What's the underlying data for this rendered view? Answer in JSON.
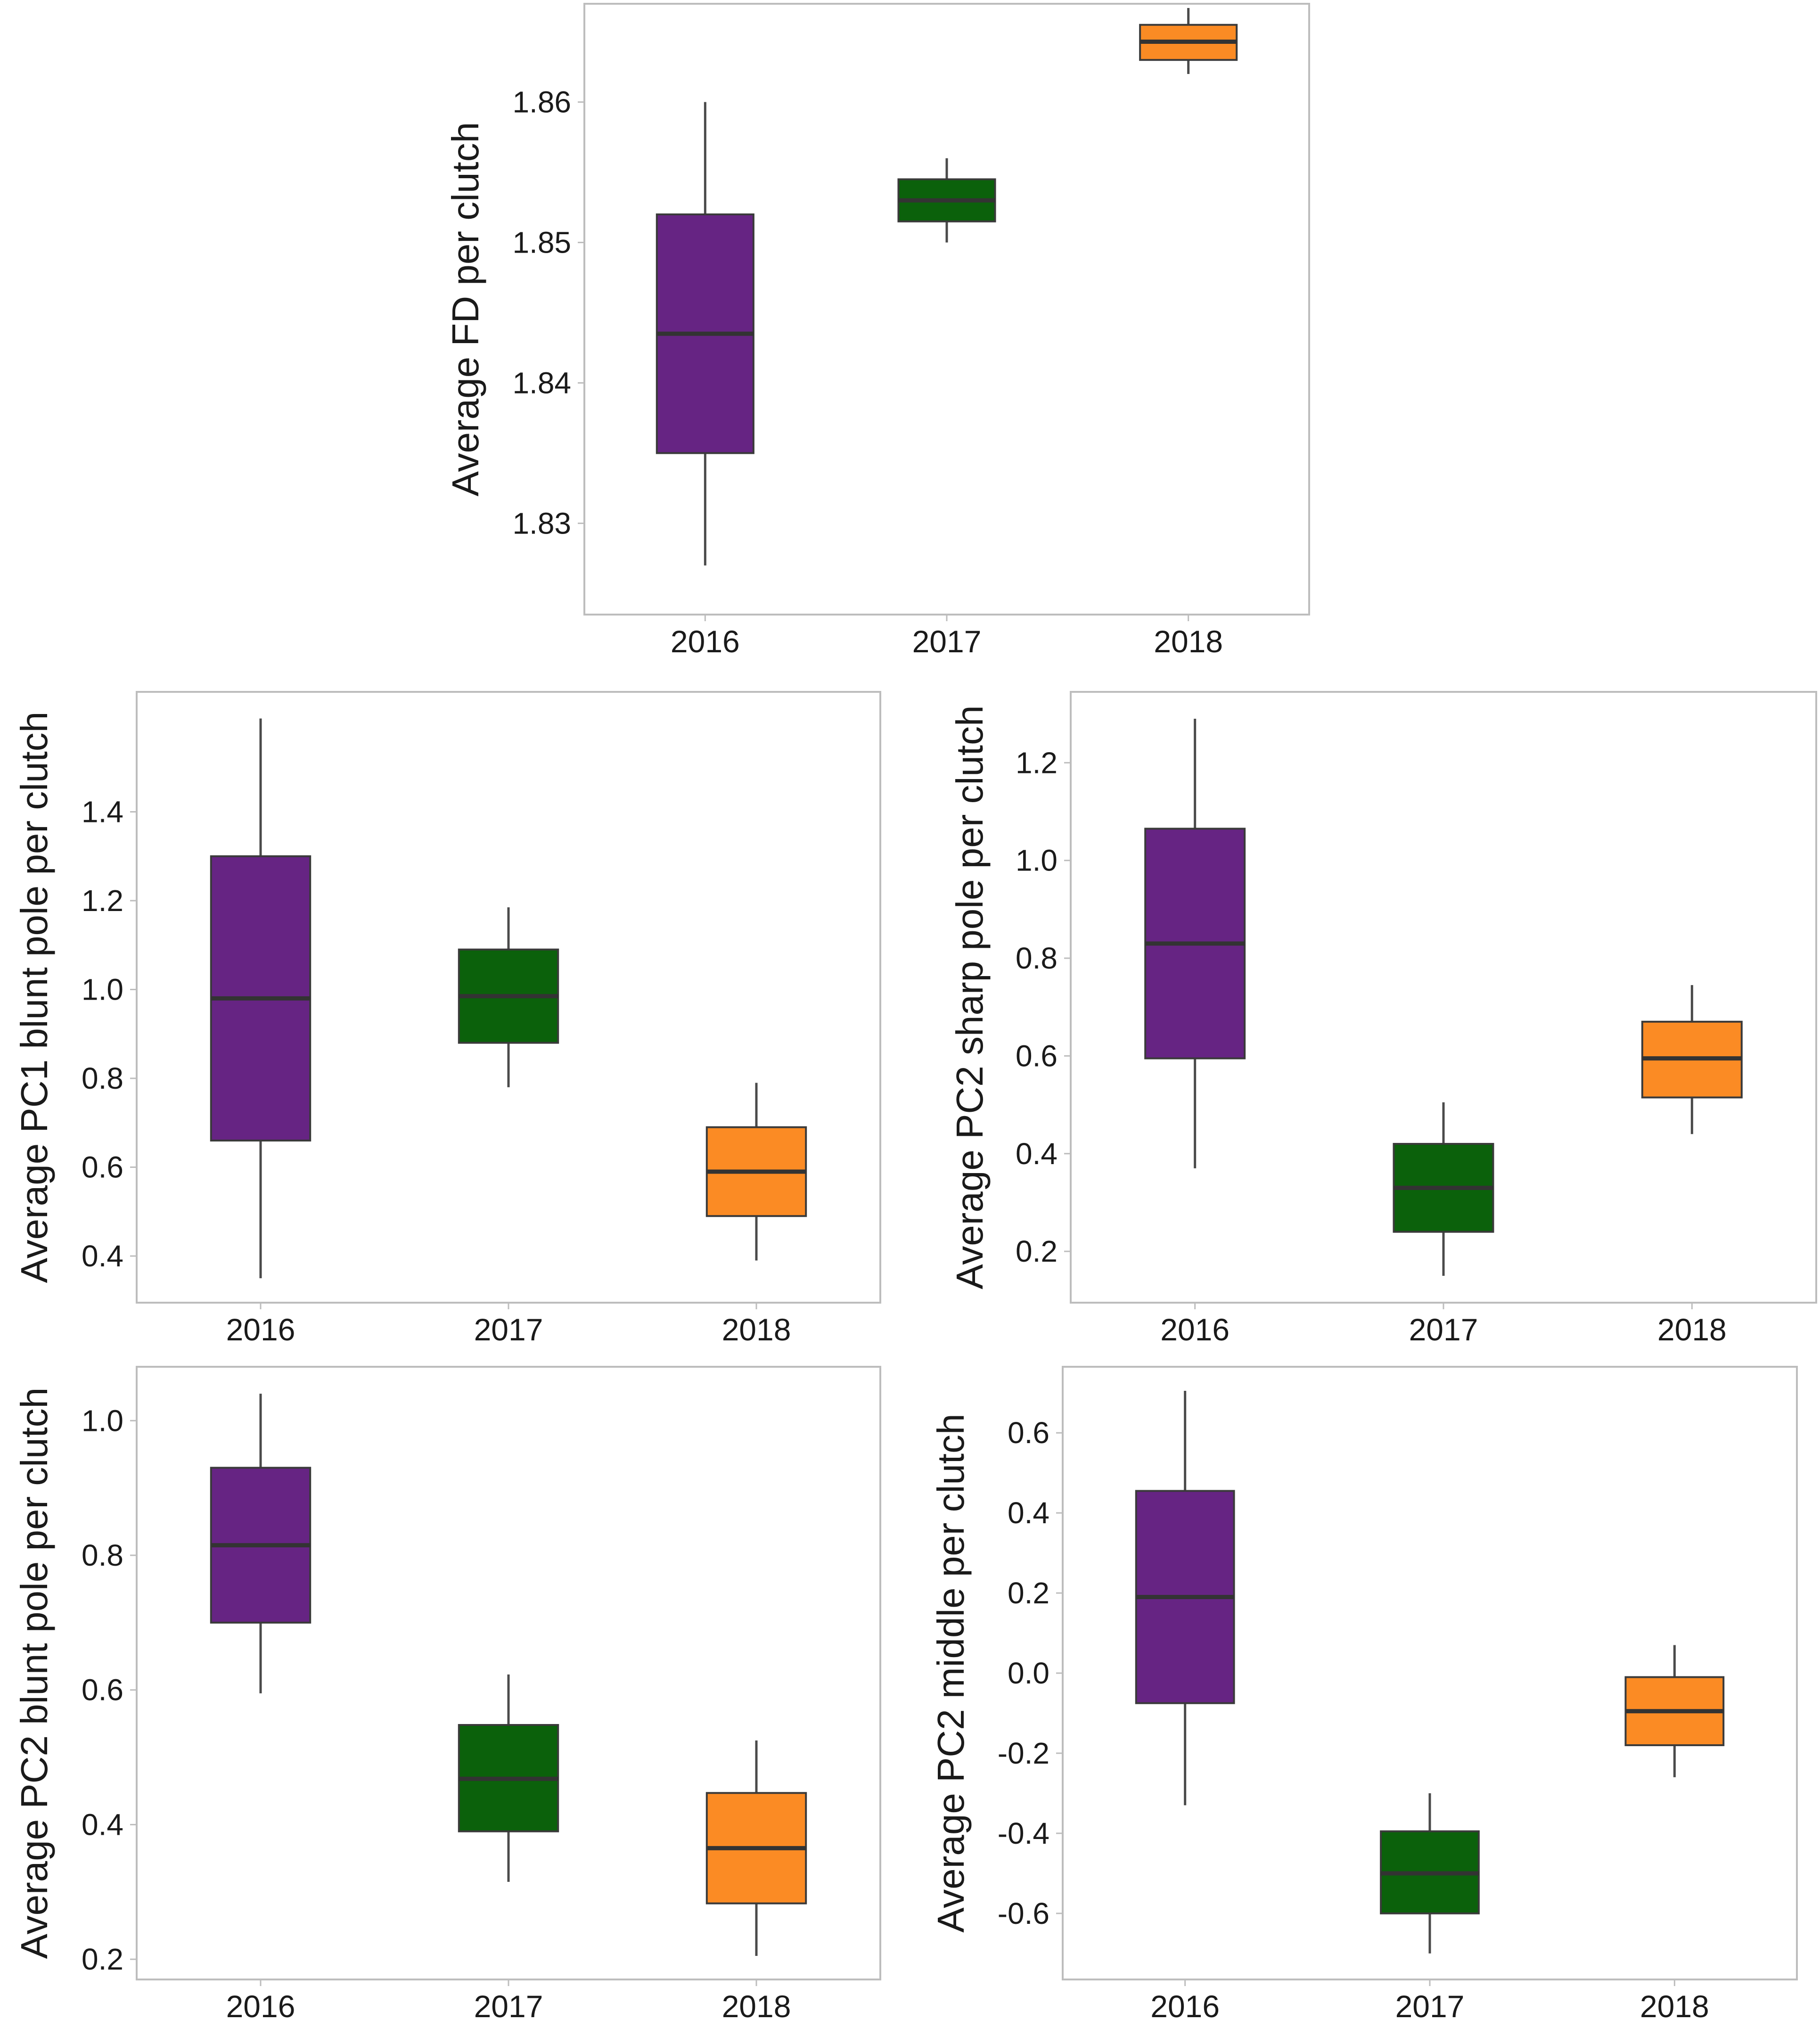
{
  "colors": {
    "y2016": "#662483",
    "y2017": "#0b610b",
    "y2018": "#fb8b24"
  },
  "chart_data": [
    {
      "type": "boxplot",
      "ylabel": "Average FD per clutch",
      "categories": [
        "2016",
        "2017",
        "2018"
      ],
      "ylim": [
        1.8235,
        1.867
      ],
      "yticks": [
        1.83,
        1.84,
        1.85,
        1.86
      ],
      "ytick_labels": [
        "1.83",
        "1.84",
        "1.85",
        "1.86"
      ],
      "boxes": [
        {
          "min": 1.827,
          "q1": 1.835,
          "median": 1.8435,
          "q3": 1.852,
          "max": 1.86
        },
        {
          "min": 1.85,
          "q1": 1.8515,
          "median": 1.853,
          "q3": 1.8545,
          "max": 1.856
        },
        {
          "min": 1.862,
          "q1": 1.863,
          "median": 1.8643,
          "q3": 1.8655,
          "max": 1.8667
        }
      ]
    },
    {
      "type": "boxplot",
      "ylabel": "Average PC1 blunt pole per clutch",
      "categories": [
        "2016",
        "2017",
        "2018"
      ],
      "ylim": [
        0.295,
        1.67
      ],
      "yticks": [
        0.4,
        0.6,
        0.8,
        1.0,
        1.2,
        1.4
      ],
      "ytick_labels": [
        "0.4",
        "0.6",
        "0.8",
        "1.0",
        "1.2",
        "1.4"
      ],
      "boxes": [
        {
          "min": 0.35,
          "q1": 0.66,
          "median": 0.98,
          "q3": 1.3,
          "max": 1.61
        },
        {
          "min": 0.78,
          "q1": 0.88,
          "median": 0.985,
          "q3": 1.09,
          "max": 1.185
        },
        {
          "min": 0.39,
          "q1": 0.49,
          "median": 0.59,
          "q3": 0.69,
          "max": 0.79
        }
      ]
    },
    {
      "type": "boxplot",
      "ylabel": "Average PC2 sharp pole per clutch",
      "categories": [
        "2016",
        "2017",
        "2018"
      ],
      "ylim": [
        0.095,
        1.345
      ],
      "yticks": [
        0.2,
        0.4,
        0.6,
        0.8,
        1.0,
        1.2
      ],
      "ytick_labels": [
        "0.2",
        "0.4",
        "0.6",
        "0.8",
        "1.0",
        "1.2"
      ],
      "boxes": [
        {
          "min": 0.37,
          "q1": 0.595,
          "median": 0.83,
          "q3": 1.065,
          "max": 1.29
        },
        {
          "min": 0.15,
          "q1": 0.24,
          "median": 0.33,
          "q3": 0.42,
          "max": 0.505
        },
        {
          "min": 0.44,
          "q1": 0.515,
          "median": 0.595,
          "q3": 0.67,
          "max": 0.745
        }
      ]
    },
    {
      "type": "boxplot",
      "ylabel": "Average PC2 blunt pole per clutch",
      "categories": [
        "2016",
        "2017",
        "2018"
      ],
      "ylim": [
        0.17,
        1.08
      ],
      "yticks": [
        0.2,
        0.4,
        0.6,
        0.8,
        1.0
      ],
      "ytick_labels": [
        "0.2",
        "0.4",
        "0.6",
        "0.8",
        "1.0"
      ],
      "boxes": [
        {
          "min": 0.595,
          "q1": 0.7,
          "median": 0.815,
          "q3": 0.93,
          "max": 1.04
        },
        {
          "min": 0.315,
          "q1": 0.39,
          "median": 0.468,
          "q3": 0.548,
          "max": 0.623
        },
        {
          "min": 0.205,
          "q1": 0.283,
          "median": 0.365,
          "q3": 0.447,
          "max": 0.525
        }
      ]
    },
    {
      "type": "boxplot",
      "ylabel": "Average PC2 middle per clutch",
      "categories": [
        "2016",
        "2017",
        "2018"
      ],
      "ylim": [
        -0.765,
        0.765
      ],
      "yticks": [
        -0.6,
        -0.4,
        -0.2,
        0.0,
        0.2,
        0.4,
        0.6
      ],
      "ytick_labels": [
        "-0.6",
        "-0.4",
        "-0.2",
        "0.0",
        "0.2",
        "0.4",
        "0.6"
      ],
      "boxes": [
        {
          "min": -0.33,
          "q1": -0.075,
          "median": 0.19,
          "q3": 0.455,
          "max": 0.705
        },
        {
          "min": -0.7,
          "q1": -0.6,
          "median": -0.5,
          "q3": -0.395,
          "max": -0.3
        },
        {
          "min": -0.26,
          "q1": -0.18,
          "median": -0.095,
          "q3": -0.01,
          "max": 0.07
        }
      ]
    }
  ]
}
